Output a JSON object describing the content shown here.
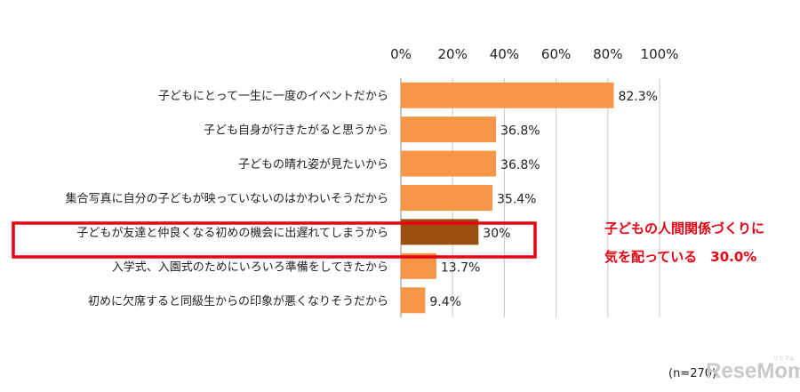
{
  "chart_data": {
    "type": "bar",
    "orientation": "horizontal",
    "x_ticks": [
      "0%",
      "20%",
      "40%",
      "60%",
      "80%",
      "100%"
    ],
    "xlim": [
      0,
      100
    ],
    "categories": [
      "子どもにとって一生に一度のイベントだから",
      "子ども自身が行きたがると思うから",
      "子どもの晴れ姿が見たいから",
      "集合写真に自分の子どもが映っていないのはかわいそうだから",
      "子どもが友達と仲良くなる初めの機会に出遅れてしまうから",
      "入学式、入園式のためにいろいろ準備をしてきたから",
      "初めに欠席すると同級生からの印象が悪くなりそうだから"
    ],
    "values": [
      82.3,
      36.8,
      36.8,
      35.4,
      30,
      13.7,
      9.4
    ],
    "data_labels": [
      "82.3%",
      "36.8%",
      "36.8%",
      "35.4%",
      "30%",
      "13.7%",
      "9.4%"
    ],
    "highlight_index": 4,
    "colors": {
      "bar": "#f79646",
      "highlight_bar": "#9b4f0f",
      "highlight_box": "#e60012"
    },
    "grid": true,
    "annotation": [
      "子どもの人間関係づくりに",
      "気を配っている　30.0%"
    ],
    "note": "(n=270)"
  },
  "watermark": "ReseMom",
  "watermark_small": "リセマム"
}
